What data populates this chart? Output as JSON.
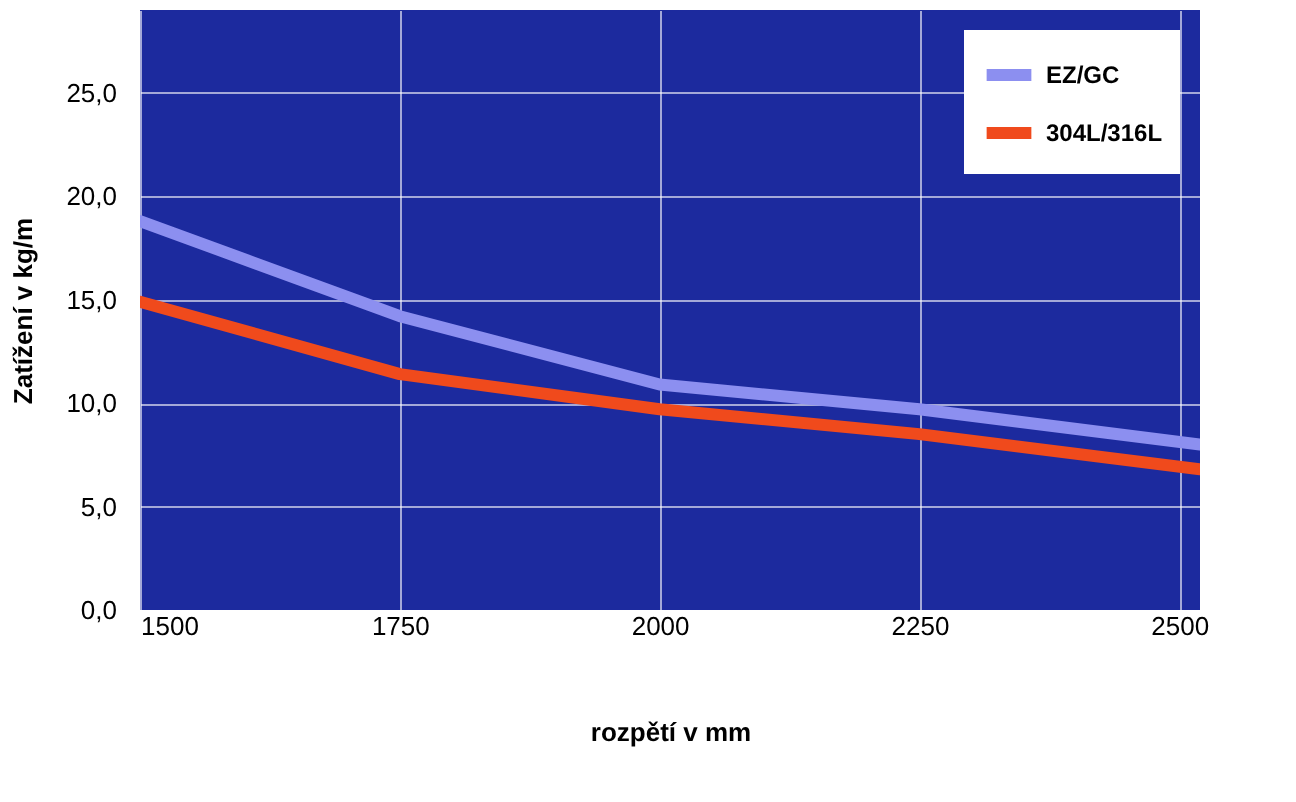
{
  "chart_data": {
    "type": "line",
    "xlabel": "rozpětí v mm",
    "ylabel": "Zatížení v kg/m",
    "xlim": [
      1500,
      2520
    ],
    "xticks": [
      1500,
      1750,
      2000,
      2250,
      2500
    ],
    "ylim": [
      0,
      29
    ],
    "yticks": [
      {
        "value": 0,
        "label": "0,0"
      },
      {
        "value": 5,
        "label": "5,0"
      },
      {
        "value": 10,
        "label": "10,0"
      },
      {
        "value": 15,
        "label": "15,0"
      },
      {
        "value": 20,
        "label": "20,0"
      },
      {
        "value": 25,
        "label": "25,0"
      }
    ],
    "grid": true,
    "legend": "top right",
    "line_style": "solid",
    "marker": "none",
    "series": [
      {
        "name": "EZ/GC",
        "color": "#8c8ff0",
        "x": [
          1500,
          1750,
          2000,
          2250,
          2520
        ],
        "values": [
          18.8,
          14.2,
          10.9,
          9.7,
          8.0
        ]
      },
      {
        "name": "304L/316L",
        "color": "#f04a1c",
        "x": [
          1500,
          1750,
          2000,
          2250,
          2520
        ],
        "values": [
          14.9,
          11.4,
          9.7,
          8.5,
          6.8
        ]
      }
    ]
  }
}
